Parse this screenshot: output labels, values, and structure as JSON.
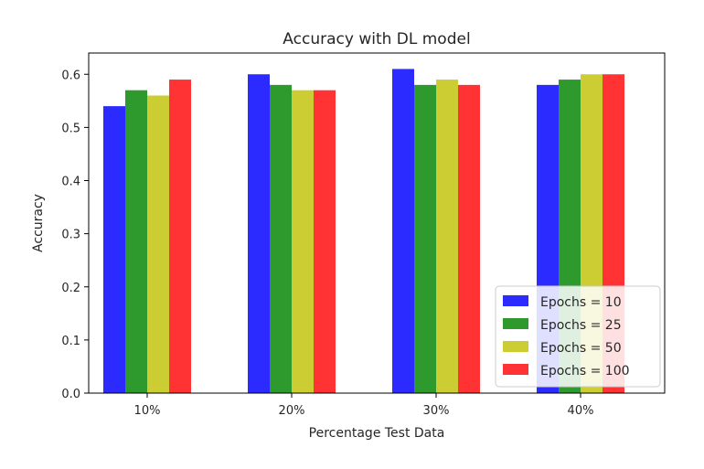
{
  "chart_data": {
    "type": "bar",
    "title": "Accuracy with DL model",
    "xlabel": "Percentage Test Data",
    "ylabel": "Accuracy",
    "categories": [
      "10%",
      "20%",
      "30%",
      "40%"
    ],
    "ylim": [
      0,
      0.64
    ],
    "yticks": [
      "0.0",
      "0.1",
      "0.2",
      "0.3",
      "0.4",
      "0.5",
      "0.6"
    ],
    "grid": false,
    "legend_position": "bottom-right",
    "series": [
      {
        "name": "Epochs = 10",
        "color": "#2b2bff",
        "values": [
          0.54,
          0.6,
          0.61,
          0.58
        ]
      },
      {
        "name": "Epochs = 25",
        "color": "#2e9a2e",
        "values": [
          0.57,
          0.58,
          0.58,
          0.59
        ]
      },
      {
        "name": "Epochs = 50",
        "color": "#cccc33",
        "values": [
          0.56,
          0.57,
          0.59,
          0.6
        ]
      },
      {
        "name": "Epochs = 100",
        "color": "#ff3333",
        "values": [
          0.59,
          0.57,
          0.58,
          0.6
        ]
      }
    ]
  }
}
